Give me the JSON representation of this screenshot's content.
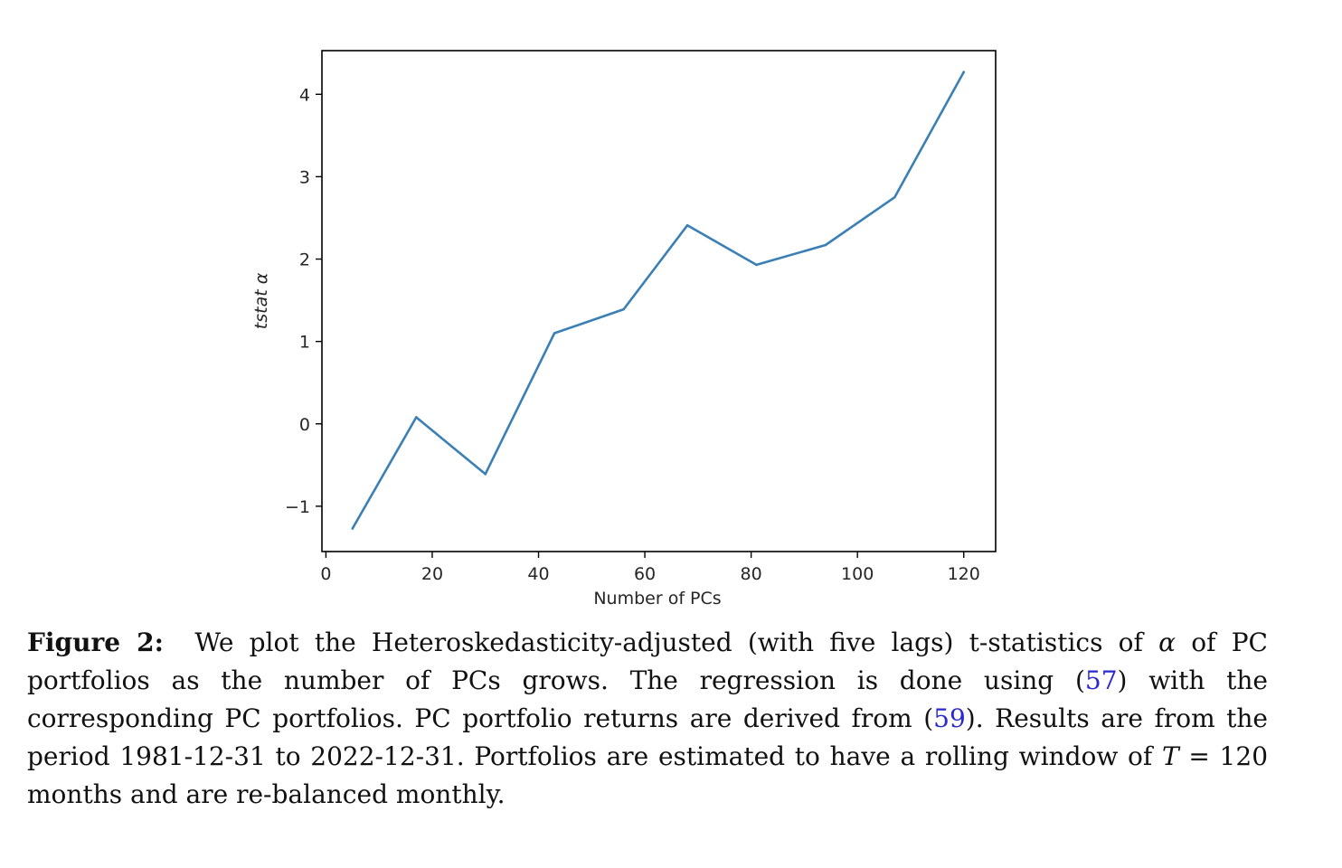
{
  "chart_data": {
    "type": "line",
    "xlabel": "Number of PCs",
    "ylabel": "tstat α",
    "xlim": [
      -0.75,
      126
    ],
    "ylim": [
      -1.55,
      4.53
    ],
    "xticks": [
      0,
      20,
      40,
      60,
      80,
      100,
      120
    ],
    "yticks": [
      -1,
      0,
      1,
      2,
      3,
      4
    ],
    "grid": false,
    "line_color": "#3a7fb5",
    "series": [
      {
        "x": [
          5,
          17,
          30,
          43,
          56,
          68,
          81,
          94,
          107,
          120
        ],
        "values": [
          -1.27,
          0.08,
          -0.61,
          1.1,
          1.39,
          2.41,
          1.93,
          2.17,
          2.75,
          4.27
        ]
      }
    ]
  },
  "caption": {
    "label": "Figure 2:",
    "seg1": "We plot the Heteroskedasticity-adjusted (with five lags) t-statistics of",
    "alpha": "α",
    "seg2": "of PC portfolios as the number of PCs grows. The regression is done using (",
    "ref1": "57",
    "seg3": ") with the corresponding PC portfolios. PC portfolio returns are derived from (",
    "ref2": "59",
    "seg4": "). Results are from the period 1981-12-31 to 2022-12-31. Portfolios are estimated to have a rolling window of",
    "t_symbol": "T",
    "seg5": "= 120 months and are re-balanced monthly."
  }
}
